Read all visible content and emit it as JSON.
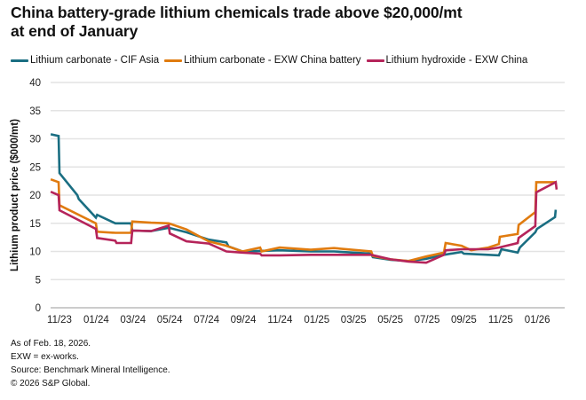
{
  "chart_data": {
    "type": "line",
    "title": "China battery-grade lithium chemicals trade above $20,000/mt at end of January",
    "title_lines": [
      "China battery-grade lithium chemicals trade above $20,000/mt",
      "at end of January"
    ],
    "xlabel": "",
    "ylabel": "Lithium product price ($000/mt)",
    "ylim": [
      0,
      40
    ],
    "yticks": [
      0,
      5,
      10,
      15,
      20,
      25,
      30,
      35,
      40
    ],
    "x_unit": "months since 11/23",
    "xlim": [
      -0.5,
      27.5
    ],
    "xticks": [
      {
        "t": 0,
        "label": "11/23"
      },
      {
        "t": 2,
        "label": "01/24"
      },
      {
        "t": 4,
        "label": "03/24"
      },
      {
        "t": 6,
        "label": "05/24"
      },
      {
        "t": 8,
        "label": "07/24"
      },
      {
        "t": 10,
        "label": "09/24"
      },
      {
        "t": 12,
        "label": "11/24"
      },
      {
        "t": 14,
        "label": "01/25"
      },
      {
        "t": 16,
        "label": "03/25"
      },
      {
        "t": 18,
        "label": "05/25"
      },
      {
        "t": 20,
        "label": "07/25"
      },
      {
        "t": 22,
        "label": "09/25"
      },
      {
        "t": 24,
        "label": "11/25"
      },
      {
        "t": 26,
        "label": "01/26"
      }
    ],
    "grid": true,
    "legend_position": "top-left",
    "series": [
      {
        "name": "Lithium carbonate - CIF Asia",
        "color": "#1a6e82",
        "points": [
          [
            -0.48,
            30.8
          ],
          [
            -0.05,
            30.5
          ],
          [
            0.0,
            23.9
          ],
          [
            0.97,
            20.0
          ],
          [
            1.05,
            19.3
          ],
          [
            1.98,
            16.0
          ],
          [
            2.05,
            16.5
          ],
          [
            3.04,
            15.0
          ],
          [
            3.9,
            15.0
          ],
          [
            3.96,
            13.7
          ],
          [
            4.98,
            13.6
          ],
          [
            5.94,
            14.2
          ],
          [
            6.91,
            13.4
          ],
          [
            8.12,
            12.1
          ],
          [
            9.08,
            11.6
          ],
          [
            9.2,
            10.9
          ],
          [
            9.95,
            10.0
          ],
          [
            10.92,
            10.1
          ],
          [
            11.98,
            10.2
          ],
          [
            13.67,
            10.0
          ],
          [
            14.93,
            10.0
          ],
          [
            16.96,
            9.6
          ],
          [
            17.05,
            9.0
          ],
          [
            18.02,
            8.5
          ],
          [
            18.99,
            8.3
          ],
          [
            19.95,
            8.7
          ],
          [
            20.92,
            9.4
          ],
          [
            21.88,
            9.9
          ],
          [
            22.0,
            9.6
          ],
          [
            23.33,
            9.4
          ],
          [
            23.91,
            9.3
          ],
          [
            24.05,
            10.4
          ],
          [
            24.93,
            9.8
          ],
          [
            25.05,
            10.7
          ],
          [
            25.89,
            13.4
          ],
          [
            25.98,
            14.0
          ],
          [
            26.96,
            16.1
          ],
          [
            27.0,
            17.4
          ]
        ]
      },
      {
        "name": "Lithium carbonate - EXW China battery",
        "color": "#e07b0f",
        "points": [
          [
            -0.48,
            22.8
          ],
          [
            -0.05,
            22.3
          ],
          [
            0.0,
            18.2
          ],
          [
            1.98,
            15.0
          ],
          [
            2.05,
            13.5
          ],
          [
            3.04,
            13.3
          ],
          [
            3.9,
            13.3
          ],
          [
            3.96,
            15.3
          ],
          [
            4.98,
            15.1
          ],
          [
            5.94,
            15.0
          ],
          [
            6.91,
            13.9
          ],
          [
            8.12,
            11.8
          ],
          [
            9.08,
            11.0
          ],
          [
            9.95,
            10.0
          ],
          [
            10.92,
            10.7
          ],
          [
            11.0,
            10.0
          ],
          [
            11.98,
            10.7
          ],
          [
            13.67,
            10.3
          ],
          [
            14.93,
            10.6
          ],
          [
            16.96,
            10.0
          ],
          [
            17.05,
            9.2
          ],
          [
            18.02,
            8.6
          ],
          [
            18.99,
            8.3
          ],
          [
            19.95,
            9.1
          ],
          [
            20.92,
            9.8
          ],
          [
            21.01,
            11.5
          ],
          [
            21.88,
            11.0
          ],
          [
            22.4,
            10.2
          ],
          [
            23.33,
            10.7
          ],
          [
            23.91,
            11.3
          ],
          [
            23.96,
            12.6
          ],
          [
            24.93,
            13.1
          ],
          [
            24.98,
            14.7
          ],
          [
            25.89,
            17.0
          ],
          [
            25.94,
            22.3
          ],
          [
            27.0,
            22.3
          ]
        ]
      },
      {
        "name": "Lithium hydroxide - EXW China",
        "color": "#b5245a",
        "points": [
          [
            -0.48,
            20.6
          ],
          [
            -0.05,
            20.0
          ],
          [
            0.0,
            17.3
          ],
          [
            1.98,
            14.0
          ],
          [
            2.05,
            12.4
          ],
          [
            3.04,
            11.9
          ],
          [
            3.1,
            11.5
          ],
          [
            3.9,
            11.5
          ],
          [
            3.96,
            13.7
          ],
          [
            4.98,
            13.6
          ],
          [
            5.94,
            14.6
          ],
          [
            6.0,
            13.2
          ],
          [
            6.91,
            11.8
          ],
          [
            8.12,
            11.4
          ],
          [
            9.08,
            10.0
          ],
          [
            9.95,
            9.8
          ],
          [
            10.92,
            9.6
          ],
          [
            11.0,
            9.3
          ],
          [
            11.98,
            9.3
          ],
          [
            13.67,
            9.4
          ],
          [
            14.93,
            9.4
          ],
          [
            16.96,
            9.4
          ],
          [
            18.02,
            8.6
          ],
          [
            18.99,
            8.2
          ],
          [
            19.95,
            8.0
          ],
          [
            20.92,
            9.4
          ],
          [
            21.01,
            10.2
          ],
          [
            21.88,
            10.4
          ],
          [
            23.33,
            10.4
          ],
          [
            23.91,
            10.7
          ],
          [
            24.93,
            11.5
          ],
          [
            24.98,
            12.4
          ],
          [
            25.89,
            14.5
          ],
          [
            25.94,
            20.5
          ],
          [
            27.0,
            22.3
          ],
          [
            27.05,
            21.0
          ]
        ]
      }
    ]
  },
  "footnotes": [
    "As of Feb. 18, 2026.",
    "EXW = ex-works.",
    "Source: Benchmark Mineral Intelligence.",
    "© 2026 S&P Global."
  ]
}
